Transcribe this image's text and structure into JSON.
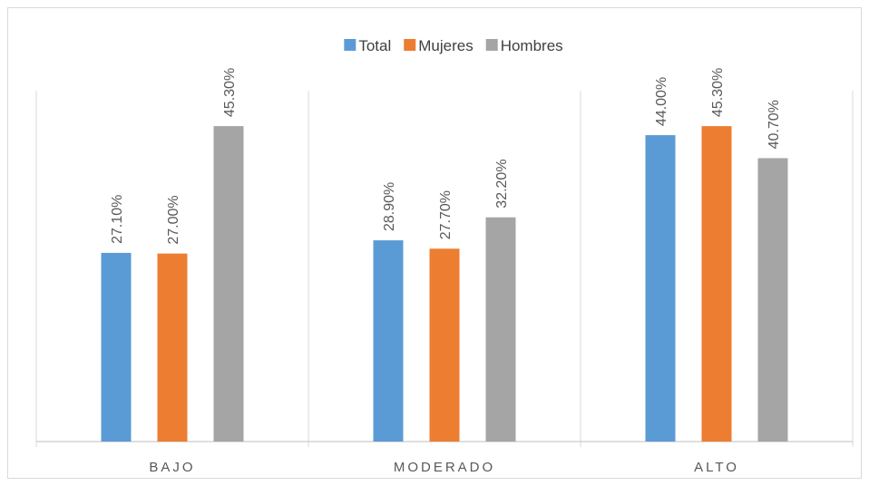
{
  "chart_data": {
    "type": "bar",
    "categories": [
      "BAJO",
      "MODERADO",
      "ALTO"
    ],
    "series": [
      {
        "name": "Total",
        "color": "#5b9bd5",
        "values": [
          27.1,
          28.9,
          44.0
        ],
        "value_labels": [
          "27.10%",
          "28.90%",
          "44.00%"
        ]
      },
      {
        "name": "Mujeres",
        "color": "#ed7d31",
        "values": [
          27.0,
          27.7,
          45.3
        ],
        "value_labels": [
          "27.00%",
          "27.70%",
          "45.30%"
        ]
      },
      {
        "name": "Hombres",
        "color": "#a5a5a5",
        "values": [
          45.3,
          32.2,
          40.7
        ],
        "value_labels": [
          "45.30%",
          "32.20%",
          "40.70%"
        ]
      }
    ],
    "ylim": [
      0,
      50
    ],
    "legend": "top"
  }
}
